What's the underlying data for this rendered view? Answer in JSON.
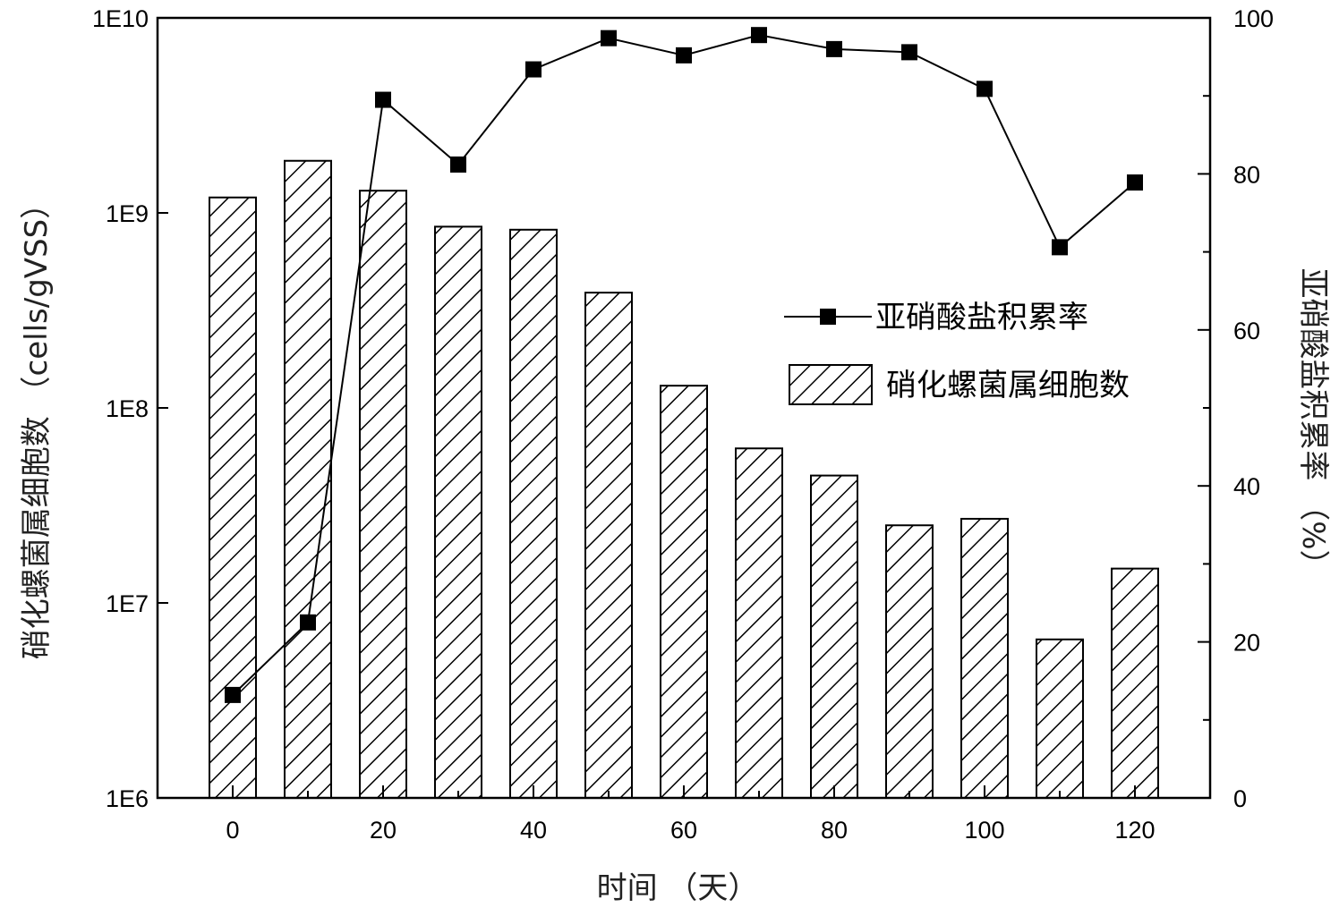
{
  "chart_data": {
    "type": "bar+line",
    "x": [
      0,
      10,
      20,
      30,
      40,
      50,
      60,
      70,
      80,
      90,
      100,
      110,
      120
    ],
    "xlabel": "时间 （天）",
    "xlim": [
      -10,
      130
    ],
    "xticks": [
      "0",
      "20",
      "40",
      "60",
      "80",
      "100",
      "120"
    ],
    "ylabel_left": "硝化螺菌属细胞数 （cells/gVSS）",
    "ylim_left": [
      1000000,
      10000000000
    ],
    "yscale_left": "log",
    "yticks_left": [
      "1E6",
      "1E7",
      "1E8",
      "1E9",
      "1E10"
    ],
    "ylabel_right": "亚硝酸盐积累率 （%）",
    "ylim_right": [
      0,
      100
    ],
    "yticks_right": [
      "0",
      "20",
      "40",
      "60",
      "80",
      "100"
    ],
    "grid": false,
    "legend_position": "right-middle",
    "series": [
      {
        "name": "硝化螺菌属细胞数",
        "kind": "bar",
        "axis": "left",
        "pattern": "diagonal-hatch",
        "values": [
          1200000000,
          1850000000,
          1300000000,
          850000000,
          820000000,
          390000000,
          130000000,
          62000000,
          45000000,
          25000000,
          27000000,
          6500000,
          15000000
        ]
      },
      {
        "name": "亚硝酸盐积累率",
        "kind": "line",
        "axis": "right",
        "marker": "square",
        "values": [
          13.2,
          22.5,
          89.5,
          81.2,
          93.4,
          97.4,
          95.2,
          97.8,
          96.0,
          95.6,
          90.9,
          70.6,
          78.9
        ]
      }
    ]
  }
}
